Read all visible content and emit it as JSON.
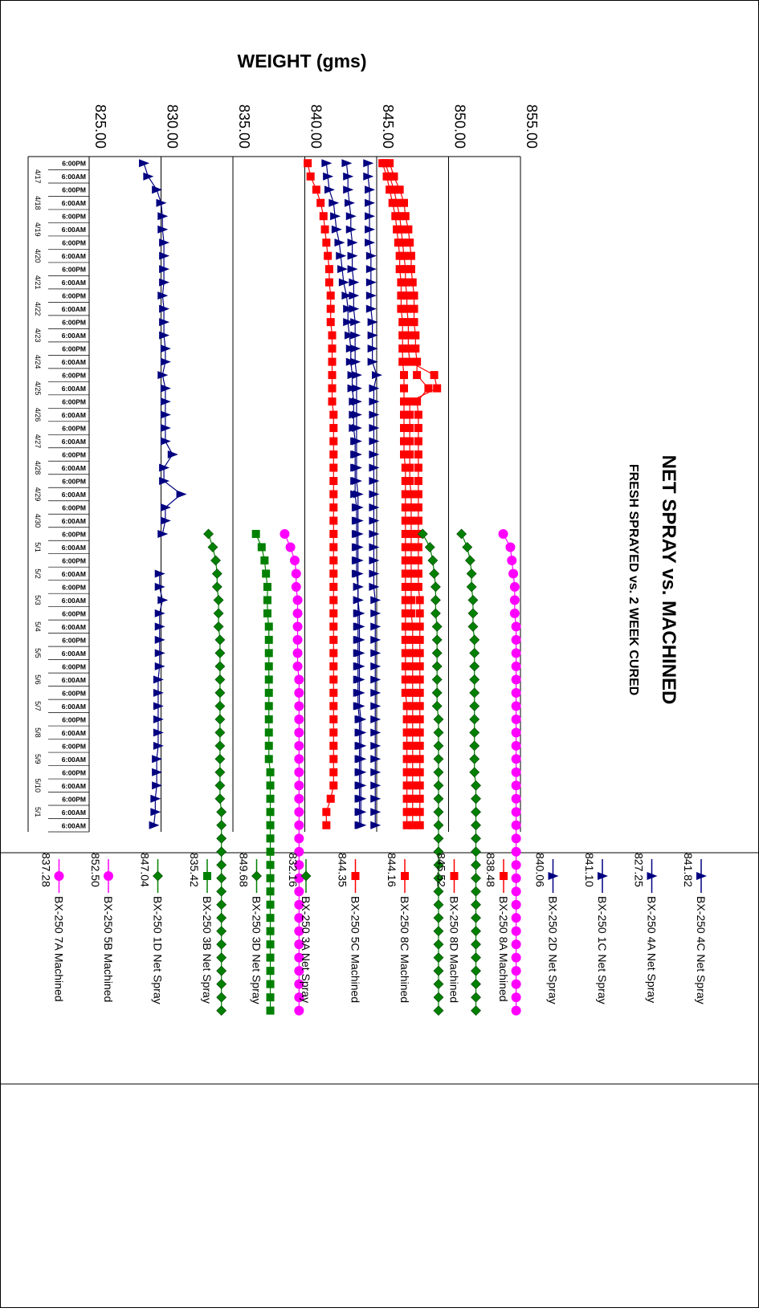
{
  "chart_data": {
    "type": "line",
    "orientation": "rotated 90 degrees clockwise (time runs down the page, weight increases to the right)",
    "title": "NET SPRAY vs. MACHINED",
    "subtitle": "FRESH SPRAYED vs. 2 WEEK CURED",
    "ylabel": "WEIGHT (gms)",
    "ylim": [
      825,
      855
    ],
    "y_ticks": [
      "825.00",
      "830.00",
      "835.00",
      "840.00",
      "845.00",
      "850.00",
      "855.00"
    ],
    "grid": true,
    "legend_position": "below plot",
    "x_slot_label": "6:00PM / 6:00AM",
    "time_labels": [
      "4/17",
      "4/18",
      "4/19",
      "4/20",
      "4/21",
      "4/22",
      "4/23",
      "4/24",
      "4/25",
      "4/26",
      "4/27",
      "4/28",
      "4/29",
      "4/30",
      "5/1",
      "5/2",
      "5/3",
      "5/4",
      "5/5",
      "5/6",
      "5/7",
      "5/8",
      "5/9",
      "5/10",
      "5/1"
    ],
    "slot_labels": [
      "6:00PM",
      "6:00AM",
      "6:00PM",
      "6:00AM",
      "6:00PM",
      "6:00AM",
      "6:00PM",
      "6:00AM",
      "6:00PM",
      "6:00AM",
      "6:00PM",
      "6:00AM",
      "6:00PM",
      "6:00AM",
      "6:00PM",
      "6:00AM",
      "6:00PM",
      "6:00AM",
      "6:00PM",
      "6:00AM",
      "6:00PM",
      "6:00AM",
      "6:00PM",
      "6:00AM",
      "6:00PM",
      "6:00AM",
      "6:00PM",
      "6:00AM",
      "6:00PM",
      "6:00AM",
      "6:00PM",
      "6:00AM",
      "6:00PM",
      "6:00AM",
      "6:00PM",
      "6:00AM",
      "6:00PM",
      "6:00AM",
      "6:00PM",
      "6:00AM",
      "6:00PM",
      "6:00AM",
      "6:00PM",
      "6:00AM",
      "6:00PM",
      "6:00AM",
      "6:00PM",
      "6:00AM",
      "6:00PM",
      "6:00AM",
      "6:00AM"
    ],
    "series": [
      {
        "name": "BX-250 4C Net Spray",
        "value_label": "841.82",
        "color": "#000080",
        "marker": "triangle",
        "start": 0,
        "values": [
          841.5,
          841.6,
          841.7,
          842.0,
          842.1,
          842.2,
          842.4,
          842.5,
          842.6,
          842.7,
          842.9,
          843.0,
          843.0,
          843.1,
          843.2,
          843.2,
          843.3,
          843.3,
          843.4,
          843.4,
          843.4,
          843.5,
          843.5,
          843.5,
          843.5,
          843.5,
          843.6,
          843.6,
          843.6,
          843.6,
          843.6,
          843.6,
          843.7,
          843.7,
          843.7,
          843.7,
          843.7,
          843.7,
          843.7,
          843.7,
          843.7,
          843.7,
          843.8,
          843.8,
          843.8,
          843.8,
          843.8,
          843.8,
          843.8,
          843.8,
          843.8
        ]
      },
      {
        "name": "BX-250 4A Net Spray",
        "value_label": "827.25",
        "color": "#000080",
        "marker": "triangle",
        "start": 0,
        "values": [
          828.8,
          829.1,
          829.7,
          830.0,
          830.1,
          830.1,
          830.2,
          830.2,
          830.2,
          830.2,
          830.1,
          830.2,
          830.2,
          830.2,
          830.3,
          830.3,
          830.1,
          830.3,
          830.3,
          830.3,
          830.3,
          830.3,
          830.8,
          830.2,
          830.2,
          831.4,
          830.3,
          830.3,
          830.1,
          null,
          null,
          829.9,
          829.9,
          830.1,
          829.9,
          829.9,
          829.9,
          829.9,
          829.9,
          829.8,
          829.8,
          829.8,
          829.8,
          829.8,
          829.8,
          829.7,
          829.7,
          829.7,
          829.6,
          829.6,
          829.5
        ]
      },
      {
        "name": "BX-250 1C Net Spray",
        "value_label": "841.10",
        "color": "#000080",
        "marker": "triangle",
        "start": 0,
        "values": [
          842.9,
          843.0,
          843.0,
          843.1,
          843.2,
          843.2,
          843.3,
          843.3,
          843.3,
          843.4,
          843.4,
          843.4,
          843.5,
          843.5,
          843.5,
          843.5,
          843.6,
          843.6,
          843.6,
          843.6,
          843.6,
          843.6,
          843.6,
          843.6,
          843.6,
          843.7,
          843.7,
          843.7,
          843.7,
          843.7,
          843.7,
          843.7,
          843.7,
          843.7,
          843.8,
          843.8,
          843.8,
          843.8,
          843.8,
          843.8,
          843.8,
          843.8,
          843.9,
          843.9,
          843.9,
          843.9,
          843.9,
          843.9,
          843.9,
          843.9,
          843.9
        ]
      },
      {
        "name": "BX-250 2D Net Spray",
        "value_label": "840.06",
        "color": "#000080",
        "marker": "triangle",
        "start": 0,
        "values": [
          844.4,
          844.4,
          844.5,
          844.5,
          844.5,
          844.5,
          844.5,
          844.6,
          844.6,
          844.6,
          844.6,
          844.6,
          844.7,
          844.7,
          844.7,
          844.7,
          845.0,
          844.8,
          844.8,
          844.8,
          844.8,
          844.8,
          844.8,
          844.8,
          844.8,
          844.8,
          844.8,
          844.8,
          844.8,
          844.8,
          844.8,
          844.8,
          844.8,
          844.9,
          844.9,
          844.9,
          844.9,
          844.9,
          844.9,
          844.9,
          844.9,
          844.9,
          844.9,
          844.9,
          844.9,
          844.9,
          844.9,
          844.9,
          844.9,
          844.9,
          844.9
        ]
      },
      {
        "name": "BX-250 8A Machined",
        "value_label": "838.48",
        "color": "#ff0000",
        "marker": "square",
        "start": 0,
        "values": [
          840.2,
          840.4,
          840.8,
          841.1,
          841.3,
          841.4,
          841.5,
          841.6,
          841.7,
          841.7,
          841.8,
          841.8,
          841.8,
          841.9,
          841.9,
          841.9,
          841.9,
          841.9,
          841.9,
          842.0,
          842.0,
          842.0,
          842.0,
          842.0,
          842.0,
          842.0,
          842.0,
          842.0,
          842.0,
          842.0,
          842.0,
          842.0,
          842.0,
          842.0,
          842.0,
          842.0,
          842.0,
          842.0,
          842.0,
          842.0,
          842.0,
          842.0,
          842.0,
          842.0,
          842.0,
          842.0,
          842.0,
          842.0,
          841.8,
          841.5,
          841.5
        ]
      },
      {
        "name": "BX-250 8D Machined",
        "value_label": "845.52",
        "color": "#ff0000",
        "marker": "square",
        "start": 0,
        "values": [
          845.9,
          846.2,
          846.6,
          846.9,
          847.0,
          847.2,
          847.3,
          847.4,
          847.4,
          847.5,
          847.6,
          847.6,
          847.6,
          847.7,
          847.7,
          847.8,
          847.8,
          848.6,
          847.8,
          847.9,
          847.9,
          847.9,
          847.9,
          847.9,
          847.9,
          847.9,
          847.9,
          847.9,
          847.9,
          847.9,
          847.9,
          847.9,
          847.9,
          848.0,
          848.0,
          848.0,
          848.0,
          848.0,
          848.0,
          848.0,
          848.0,
          848.0,
          848.0,
          848.0,
          848.0,
          848.0,
          848.0,
          848.0,
          848.0,
          848.0,
          848.0
        ]
      },
      {
        "name": "BX-250 8C Machined",
        "value_label": "844.16",
        "color": "#ff0000",
        "marker": "square",
        "start": 0,
        "values": [
          845.6,
          845.9,
          846.2,
          846.4,
          846.6,
          846.7,
          846.8,
          846.9,
          847.0,
          847.0,
          847.1,
          847.1,
          847.2,
          847.2,
          847.2,
          847.3,
          849.0,
          849.2,
          847.3,
          847.3,
          847.3,
          847.3,
          847.3,
          847.3,
          847.3,
          847.4,
          847.4,
          847.4,
          847.4,
          847.4,
          847.4,
          847.4,
          847.4,
          847.4,
          847.4,
          847.5,
          847.5,
          847.5,
          847.5,
          847.5,
          847.5,
          847.5,
          847.5,
          847.5,
          847.5,
          847.5,
          847.5,
          847.5,
          847.5,
          847.5,
          847.5
        ]
      },
      {
        "name": "BX-250 5C Machined",
        "value_label": "844.35",
        "color": "#ff0000",
        "marker": "square",
        "start": 0,
        "values": [
          845.4,
          845.7,
          845.9,
          846.1,
          846.3,
          846.4,
          846.5,
          846.6,
          846.6,
          846.7,
          846.7,
          846.7,
          846.8,
          846.8,
          846.8,
          846.8,
          846.9,
          846.9,
          846.9,
          846.9,
          846.9,
          846.9,
          846.9,
          847.0,
          847.0,
          847.0,
          847.0,
          847.0,
          847.0,
          847.0,
          847.0,
          847.0,
          847.0,
          847.0,
          847.0,
          847.0,
          847.0,
          847.0,
          847.0,
          847.0,
          847.0,
          847.1,
          847.1,
          847.1,
          847.1,
          847.1,
          847.1,
          847.1,
          847.1,
          847.1,
          847.1
        ]
      },
      {
        "name": "BX-250 3A Net Spray",
        "value_label": "832.16",
        "color": "#008000",
        "marker": "diamond",
        "start": 28,
        "values": [
          833.3,
          833.6,
          833.8,
          833.9,
          833.9,
          834.0,
          834.0,
          834.0,
          834.1,
          834.1,
          834.1,
          834.1,
          834.1,
          834.1,
          834.1,
          834.1,
          834.1,
          834.1,
          834.1,
          834.1,
          834.1,
          834.2,
          834.2,
          834.2,
          834.2,
          834.2,
          834.2,
          834.2,
          834.2,
          834.2,
          834.2,
          834.2,
          834.2,
          834.2,
          834.2,
          834.2,
          834.2
        ]
      },
      {
        "name": "BX-250 3D Net Spray",
        "value_label": "849.68",
        "color": "#008000",
        "marker": "diamond",
        "start": 28,
        "values": [
          850.9,
          851.3,
          851.5,
          851.6,
          851.6,
          851.7,
          851.7,
          851.7,
          851.8,
          851.8,
          851.8,
          851.8,
          851.8,
          851.8,
          851.8,
          851.8,
          851.8,
          851.8,
          851.8,
          851.9,
          851.9,
          851.9,
          851.9,
          851.9,
          851.9,
          851.9,
          851.9,
          851.9,
          851.9,
          851.9,
          851.9,
          851.9,
          851.9,
          851.9,
          851.9,
          851.9,
          851.9
        ]
      },
      {
        "name": "BX-250 3B Net Spray",
        "value_label": "835.42",
        "color": "#008000",
        "marker": "square",
        "start": 28,
        "values": [
          836.6,
          837.0,
          837.2,
          837.3,
          837.4,
          837.4,
          837.4,
          837.5,
          837.5,
          837.5,
          837.5,
          837.5,
          837.5,
          837.5,
          837.5,
          837.5,
          837.5,
          837.5,
          837.6,
          837.6,
          837.6,
          837.6,
          837.6,
          837.6,
          837.6,
          837.6,
          837.6,
          837.6,
          837.6,
          837.6,
          837.6,
          837.6,
          837.6,
          837.6,
          837.6,
          837.6,
          837.6
        ]
      },
      {
        "name": "BX-250 1D Net Spray",
        "value_label": "847.04",
        "color": "#008000",
        "marker": "diamond",
        "start": 28,
        "values": [
          848.2,
          848.7,
          848.9,
          849.0,
          849.1,
          849.1,
          849.1,
          849.2,
          849.2,
          849.2,
          849.2,
          849.2,
          849.2,
          849.2,
          849.3,
          849.3,
          849.3,
          849.3,
          849.3,
          849.3,
          849.3,
          849.3,
          849.3,
          849.3,
          849.3,
          849.3,
          849.3,
          849.3,
          849.3,
          849.3,
          849.3,
          849.3,
          849.3,
          849.3,
          849.3,
          849.3,
          849.3
        ]
      },
      {
        "name": "BX-250 5B Machined",
        "value_label": "852.50",
        "color": "#ff00ff",
        "marker": "circle",
        "start": 28,
        "values": [
          853.8,
          854.3,
          854.4,
          854.5,
          854.6,
          854.6,
          854.6,
          854.7,
          854.7,
          854.7,
          854.7,
          854.7,
          854.7,
          854.7,
          854.7,
          854.7,
          854.7,
          854.7,
          854.7,
          854.7,
          854.7,
          854.7,
          854.7,
          854.7,
          854.7,
          854.7,
          854.7,
          854.7,
          854.7,
          854.7,
          854.7,
          854.7,
          854.7,
          854.7,
          854.7,
          854.7,
          854.7
        ]
      },
      {
        "name": "BX-250 7A Machined",
        "value_label": "837.28",
        "color": "#ff00ff",
        "marker": "circle",
        "start": 28,
        "values": [
          838.6,
          839.0,
          839.3,
          839.4,
          839.4,
          839.5,
          839.5,
          839.5,
          839.5,
          839.5,
          839.5,
          839.6,
          839.6,
          839.6,
          839.6,
          839.6,
          839.6,
          839.6,
          839.6,
          839.6,
          839.6,
          839.6,
          839.6,
          839.6,
          839.6,
          839.6,
          839.6,
          839.6,
          839.6,
          839.6,
          839.6,
          839.6,
          839.6,
          839.6,
          839.6,
          839.6,
          839.6
        ]
      }
    ]
  }
}
